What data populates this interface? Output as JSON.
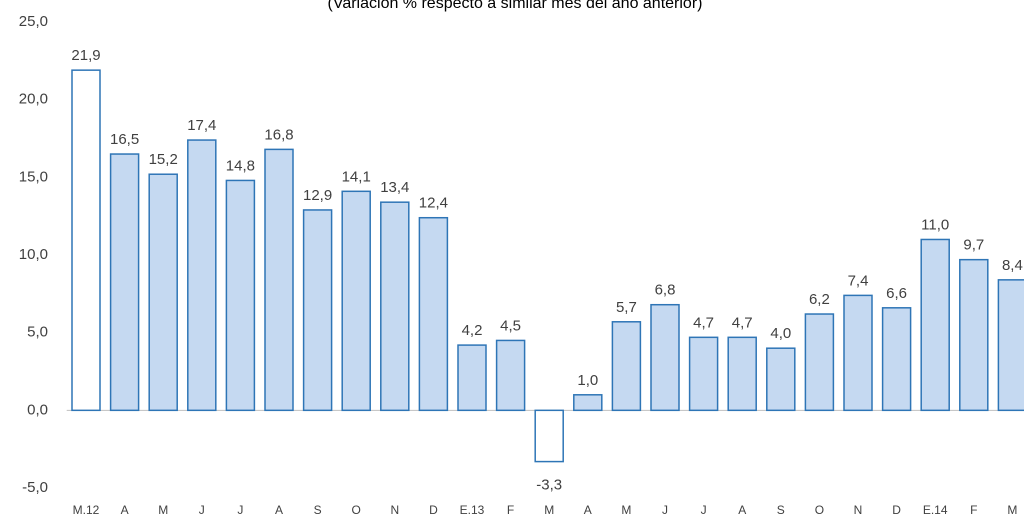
{
  "chart_data": {
    "type": "bar",
    "subtitle": "(Variación % respecto a similar mes del año anterior)",
    "categories": [
      "M.12",
      "A",
      "M",
      "J",
      "J",
      "A",
      "S",
      "O",
      "N",
      "D",
      "E.13",
      "F",
      "M",
      "A",
      "M",
      "J",
      "J",
      "A",
      "S",
      "O",
      "N",
      "D",
      "E.14",
      "F",
      "M"
    ],
    "values": [
      21.9,
      16.5,
      15.2,
      17.4,
      14.8,
      16.8,
      12.9,
      14.1,
      13.4,
      12.4,
      4.2,
      4.5,
      -3.3,
      1.0,
      5.7,
      6.8,
      4.7,
      4.7,
      4.0,
      6.2,
      7.4,
      6.6,
      11.0,
      9.7,
      8.4
    ],
    "value_labels": [
      "21,9",
      "16,5",
      "15,2",
      "17,4",
      "14,8",
      "16,8",
      "12,9",
      "14,1",
      "13,4",
      "12,4",
      "4,2",
      "4,5",
      "-3,3",
      "1,0",
      "5,7",
      "6,8",
      "4,7",
      "4,7",
      "4,0",
      "6,2",
      "7,4",
      "6,6",
      "11,0",
      "9,7",
      "8,4"
    ],
    "colors": [
      "#ffffff",
      "#c5d9f1",
      "#c5d9f1",
      "#c5d9f1",
      "#c5d9f1",
      "#c5d9f1",
      "#c5d9f1",
      "#c5d9f1",
      "#c5d9f1",
      "#c5d9f1",
      "#c5d9f1",
      "#c5d9f1",
      "#ffffff",
      "#c5d9f1",
      "#c5d9f1",
      "#c5d9f1",
      "#c5d9f1",
      "#c5d9f1",
      "#c5d9f1",
      "#c5d9f1",
      "#c5d9f1",
      "#c5d9f1",
      "#c5d9f1",
      "#c5d9f1",
      "#c5d9f1"
    ],
    "edge_color": "#2e75b6",
    "ylim": [
      -5,
      25
    ],
    "yticks": [
      {
        "value": -5,
        "label": "-5,0"
      },
      {
        "value": 0,
        "label": "0,0"
      },
      {
        "value": 5,
        "label": "5,0"
      },
      {
        "value": 10,
        "label": "10,0"
      },
      {
        "value": 15,
        "label": "15,0"
      },
      {
        "value": 20,
        "label": "20,0"
      },
      {
        "value": 25,
        "label": "25,0"
      }
    ],
    "grid": false
  }
}
